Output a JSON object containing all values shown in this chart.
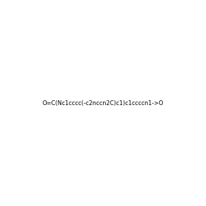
{
  "smiles": "O=C(Nc1cccc(-c2nccn2C)c1)c1ccccn1->O",
  "image_size": 300,
  "background_color": "#f0f0f0"
}
